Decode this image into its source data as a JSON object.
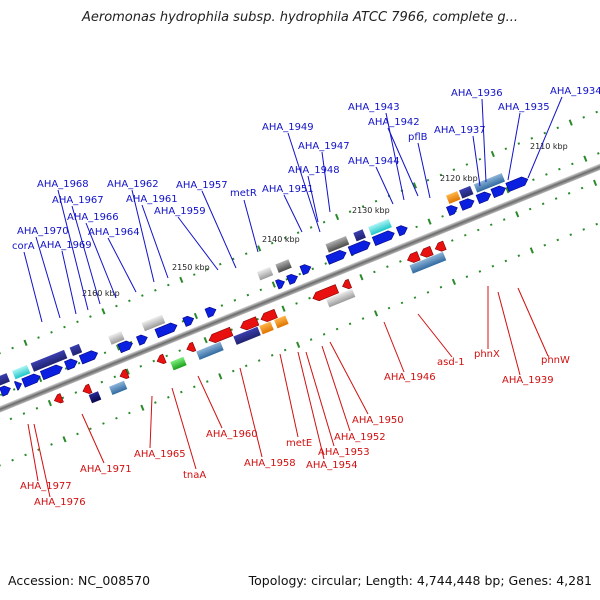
{
  "title": "Aeromonas hydrophila subsp. hydrophila ATCC 7966, complete g...",
  "accession": "Accession: NC_008570",
  "topology": "Topology: circular; Length: 4,744,448 bp; Genes: 4,281",
  "colors": {
    "forward_gene": "#0b1fe0",
    "reverse_gene": "#e8110f",
    "forward_label": "#1212c8",
    "reverse_label": "#d01010",
    "backbone": "#7a7a7a",
    "tick": "#2a8a2a"
  },
  "kbp_ticks": [
    "2110 kbp",
    "2120 kbp",
    "2130 kbp",
    "2140 kbp",
    "2150 kbp",
    "2160 kbp"
  ],
  "forward_labels": [
    "AHA_1934",
    "AHA_1935",
    "AHA_1936",
    "AHA_1937",
    "AHA_1942",
    "AHA_1943",
    "pflB",
    "AHA_1944",
    "AHA_1947",
    "AHA_1948",
    "AHA_1949",
    "AHA_1951",
    "metR",
    "AHA_1957",
    "AHA_1959",
    "AHA_1961",
    "AHA_1962",
    "AHA_1964",
    "AHA_1966",
    "AHA_1967",
    "AHA_1968",
    "AHA_1969",
    "AHA_1970",
    "corA"
  ],
  "reverse_labels": [
    "phnW",
    "phnX",
    "AHA_1939",
    "asd-1",
    "AHA_1946",
    "AHA_1950",
    "AHA_1952",
    "AHA_1953",
    "AHA_1954",
    "metE",
    "AHA_1958",
    "AHA_1960",
    "tnaA",
    "AHA_1965",
    "AHA_1971",
    "AHA_1977",
    "AHA_1976"
  ]
}
